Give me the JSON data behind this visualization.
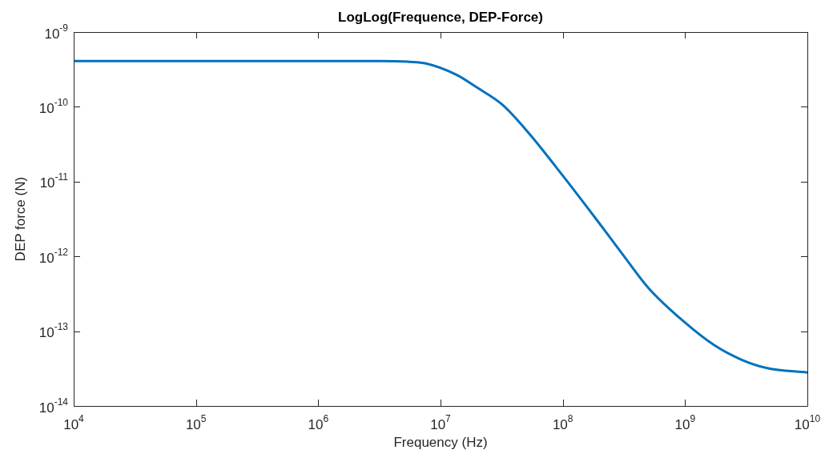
{
  "chart_data": {
    "type": "line",
    "title": "LogLog(Frequence, DEP-Force)",
    "xlabel": "Frequency (Hz)",
    "ylabel": "DEP force (N)",
    "log": "xy",
    "grid": false,
    "legend": false,
    "marker": "none",
    "line_style": "solid",
    "xlim": [
      10000.0,
      10000000000.0
    ],
    "ylim": [
      1e-14,
      1e-09
    ],
    "xticks": [
      {
        "value": 10000.0,
        "label": "10$^{4}$"
      },
      {
        "value": 100000.0,
        "label": "10$^{5}$"
      },
      {
        "value": 1000000.0,
        "label": "10$^{6}$"
      },
      {
        "value": 10000000.0,
        "label": "10$^{7}$"
      },
      {
        "value": 100000000.0,
        "label": "10$^{8}$"
      },
      {
        "value": 1000000000.0,
        "label": "10$^{9}$"
      },
      {
        "value": 10000000000.0,
        "label": "10$^{10}$"
      }
    ],
    "yticks": [
      {
        "value": 1e-14,
        "label": "10$^{-14}$"
      },
      {
        "value": 1e-13,
        "label": "10$^{-13}$"
      },
      {
        "value": 1e-12,
        "label": "10$^{-12}$"
      },
      {
        "value": 1e-11,
        "label": "10$^{-11}$"
      },
      {
        "value": 1e-10,
        "label": "10$^{-10}$"
      },
      {
        "value": 1e-09,
        "label": "10$^{-9}$"
      }
    ],
    "series": [
      {
        "color": "#0072bd",
        "x": [
          10000.0,
          100000.0,
          1000000.0,
          3200000.0,
          5600000.0,
          7600000.0,
          13400000.0,
          20000000.0,
          32000000.0,
          53000000.0,
          100000000.0,
          186000000.0,
          304000000.0,
          500000000.0,
          1000000000.0,
          1730000000.0,
          2850000000.0,
          4700000000.0,
          10000000000.0
        ],
        "values": [
          4.1e-10,
          4.1e-10,
          4.1e-10,
          4.1e-10,
          4e-10,
          3.8e-10,
          2.7e-10,
          1.8e-10,
          1.07e-10,
          4.4e-11,
          1.2e-11,
          3.2e-12,
          1.1e-12,
          3.8e-13,
          1.3e-13,
          6.5e-14,
          4.2e-14,
          3.2e-14,
          2.8e-14
        ]
      }
    ]
  }
}
